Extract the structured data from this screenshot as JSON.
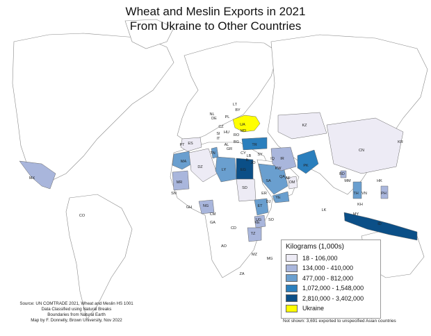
{
  "title": {
    "line1": "Wheat and Meslin Exports in 2021",
    "line2": "From Ukraine to Other Countries"
  },
  "colors": {
    "class1": "#edebf5",
    "class2": "#a9b6dc",
    "class3": "#6a9fcf",
    "class4": "#2b7fbd",
    "class5": "#0b4f87",
    "ukraine": "#ffff00",
    "land": "#ffffff",
    "border": "#888888"
  },
  "legend": {
    "title": "Kilograms (1,000s)",
    "items": [
      {
        "label": "18 - 106,000",
        "color": "#edebf5"
      },
      {
        "label": "134,000 - 410,000",
        "color": "#a9b6dc"
      },
      {
        "label": "477,000 - 812,000",
        "color": "#6a9fcf"
      },
      {
        "label": "1,072,000 - 1,548,000",
        "color": "#2b7fbd"
      },
      {
        "label": "2,810,000 - 3,402,000",
        "color": "#0b4f87"
      },
      {
        "label": "Ukraine",
        "color": "#ffff00"
      }
    ]
  },
  "source": {
    "line1": "Source: UN COMTRADE 2021, Wheat and Meslin HS 1001",
    "line2": "Data Classified using Natural Breaks",
    "line3": "Boundaries from Natural Earth",
    "line4": "Map by F. Donnelly, Brown University, Nov 2022"
  },
  "note": "Not shown: 3,691 exported to unspecified Asian countries",
  "country_labels": [
    "UA",
    "PL",
    "BY",
    "LT",
    "NL",
    "DE",
    "CZ",
    "MD",
    "RO",
    "HU",
    "SI",
    "IT",
    "AL",
    "GR",
    "BG",
    "CY",
    "TR",
    "LB",
    "IL",
    "JO",
    "SY",
    "IQ",
    "IR",
    "KW",
    "SA",
    "QA",
    "AE",
    "OM",
    "YE",
    "ER",
    "DJ",
    "SD",
    "EG",
    "LY",
    "TN",
    "DZ",
    "MA",
    "ES",
    "PT",
    "MR",
    "SN",
    "GH",
    "NG",
    "CM",
    "GA",
    "CD",
    "UG",
    "KE",
    "TZ",
    "ET",
    "SO",
    "AO",
    "ZA",
    "MZ",
    "MG",
    "PK",
    "LK",
    "BD",
    "MM",
    "TH",
    "VN",
    "KH",
    "MY",
    "ID",
    "PH",
    "CN",
    "KR",
    "KZ",
    "MX",
    "CO",
    "HK"
  ]
}
